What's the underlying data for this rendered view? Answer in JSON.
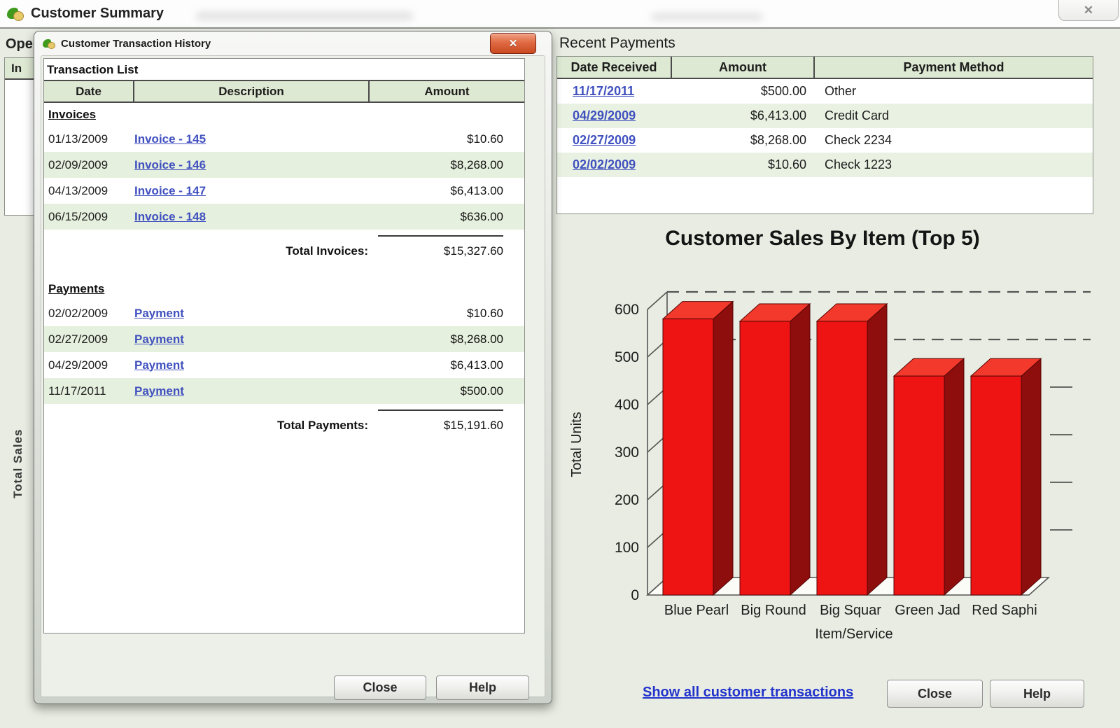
{
  "window": {
    "title": "Customer Summary",
    "close_glyph": "✕"
  },
  "background_clipped": {
    "heading": "Ope",
    "table_header": "In",
    "vertical_label": "Total Sales"
  },
  "dialog": {
    "title": "Customer Transaction History",
    "close_glyph": "✕",
    "panel_label": "Transaction List",
    "table": {
      "headers": [
        "Date",
        "Description",
        "Amount"
      ],
      "sections": [
        {
          "label": "Invoices",
          "link_kind": "invoice-link",
          "rows": [
            {
              "date": "01/13/2009",
              "desc": "Invoice - 145",
              "amount": "$10.60"
            },
            {
              "date": "02/09/2009",
              "desc": "Invoice - 146",
              "amount": "$8,268.00"
            },
            {
              "date": "04/13/2009",
              "desc": "Invoice - 147",
              "amount": "$6,413.00"
            },
            {
              "date": "06/15/2009",
              "desc": "Invoice - 148",
              "amount": "$636.00"
            }
          ],
          "total_label": "Total Invoices:",
          "total_value": "$15,327.60"
        },
        {
          "label": "Payments",
          "link_kind": "payment-link",
          "rows": [
            {
              "date": "02/02/2009",
              "desc": "Payment",
              "amount": "$10.60"
            },
            {
              "date": "02/27/2009",
              "desc": "Payment",
              "amount": "$8,268.00"
            },
            {
              "date": "04/29/2009",
              "desc": "Payment",
              "amount": "$6,413.00"
            },
            {
              "date": "11/17/2011",
              "desc": "Payment",
              "amount": "$500.00"
            }
          ],
          "total_label": "Total Payments:",
          "total_value": "$15,191.60"
        }
      ]
    },
    "buttons": {
      "close": "Close",
      "help": "Help"
    }
  },
  "recent_payments": {
    "title": "Recent Payments",
    "headers": [
      "Date Received",
      "Amount",
      "Payment Method"
    ],
    "rows": [
      {
        "date": "11/17/2011",
        "amount": "$500.00",
        "method": "Other"
      },
      {
        "date": "04/29/2009",
        "amount": "$6,413.00",
        "method": "Credit Card"
      },
      {
        "date": "02/27/2009",
        "amount": "$8,268.00",
        "method": "Check 2234"
      },
      {
        "date": "02/02/2009",
        "amount": "$10.60",
        "method": "Check 1223"
      }
    ]
  },
  "chart_data": {
    "type": "bar",
    "style": "3d",
    "title": "Customer Sales By Item (Top 5)",
    "categories": [
      "Blue Pearl",
      "Big Round",
      "Big Squar",
      "Green Jad",
      "Red Saphi"
    ],
    "values": [
      580,
      575,
      575,
      460,
      460
    ],
    "xlabel": "Item/Service",
    "ylabel": "Total Units",
    "ylim": [
      0,
      600
    ],
    "yticks": [
      0,
      100,
      200,
      300,
      400,
      500,
      600
    ],
    "grid": "dashed at 500 and 600, edge stubs below",
    "legend": "none",
    "colors": {
      "bar_front": "#ee1414",
      "bar_top": "#f2392b",
      "bar_side": "#8e0e0e",
      "bar_outline": "#550404",
      "axis": "#555555",
      "floor": "#fbfcf7",
      "label": "#1c1c1c"
    }
  },
  "footer": {
    "link": "Show all customer transactions",
    "close": "Close",
    "help": "Help"
  },
  "colors": {
    "window_bg": "#e9ece2",
    "table_header_green": "#dee9d3",
    "row_alt_green": "#e6f0de",
    "link_blue": "#4050bf",
    "footer_link_blue": "#2233cc",
    "dialog_close_red": "#c94a20"
  }
}
